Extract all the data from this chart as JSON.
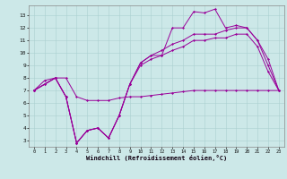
{
  "xlabel": "Windchill (Refroidissement éolien,°C)",
  "background_color": "#cce8e8",
  "grid_color": "#aad0d0",
  "line_color": "#990099",
  "xlim_min": -0.5,
  "xlim_max": 23.5,
  "ylim_min": 2.5,
  "ylim_max": 13.8,
  "xticks": [
    0,
    1,
    2,
    3,
    4,
    5,
    6,
    7,
    8,
    9,
    10,
    11,
    12,
    13,
    14,
    15,
    16,
    17,
    18,
    19,
    20,
    21,
    22,
    23
  ],
  "yticks": [
    3,
    4,
    5,
    6,
    7,
    8,
    9,
    10,
    11,
    12,
    13
  ],
  "curve1_x": [
    0,
    1,
    2,
    3,
    4,
    5,
    6,
    7,
    8,
    9,
    10,
    11,
    12,
    13,
    14,
    15,
    16,
    17,
    18,
    19,
    20,
    21,
    22,
    23
  ],
  "curve1_y": [
    7.0,
    7.8,
    8.0,
    8.0,
    6.5,
    6.2,
    6.2,
    6.2,
    6.4,
    6.5,
    6.5,
    6.6,
    6.7,
    6.8,
    6.9,
    7.0,
    7.0,
    7.0,
    7.0,
    7.0,
    7.0,
    7.0,
    7.0,
    7.0
  ],
  "curve2_x": [
    0,
    1,
    2,
    3,
    4,
    5,
    6,
    7,
    8,
    9,
    10,
    11,
    12,
    13,
    14,
    15,
    16,
    17,
    18,
    19,
    20,
    21,
    22,
    23
  ],
  "curve2_y": [
    7.0,
    7.5,
    8.0,
    6.5,
    2.8,
    3.8,
    4.0,
    3.2,
    5.0,
    7.5,
    9.0,
    9.5,
    9.8,
    10.2,
    10.5,
    11.0,
    11.0,
    11.2,
    11.2,
    11.5,
    11.5,
    10.5,
    8.5,
    7.0
  ],
  "curve3_x": [
    0,
    1,
    2,
    3,
    4,
    5,
    6,
    7,
    8,
    9,
    10,
    11,
    12,
    13,
    14,
    15,
    16,
    17,
    18,
    19,
    20,
    21,
    22,
    23
  ],
  "curve3_y": [
    7.0,
    7.5,
    8.0,
    6.5,
    2.8,
    3.8,
    4.0,
    3.2,
    5.0,
    7.5,
    9.2,
    9.8,
    10.2,
    10.7,
    11.0,
    11.5,
    11.5,
    11.5,
    11.8,
    12.0,
    12.0,
    11.0,
    9.0,
    7.0
  ],
  "curve4_x": [
    0,
    2,
    3,
    4,
    5,
    6,
    7,
    8,
    9,
    10,
    11,
    12,
    13,
    14,
    15,
    16,
    17,
    18,
    19,
    20,
    21,
    22,
    23
  ],
  "curve4_y": [
    7.0,
    8.0,
    6.5,
    2.8,
    3.8,
    4.0,
    3.2,
    5.0,
    7.5,
    9.2,
    9.8,
    9.8,
    12.0,
    12.0,
    13.3,
    13.2,
    13.5,
    12.0,
    12.2,
    12.0,
    11.0,
    9.5,
    7.0
  ]
}
